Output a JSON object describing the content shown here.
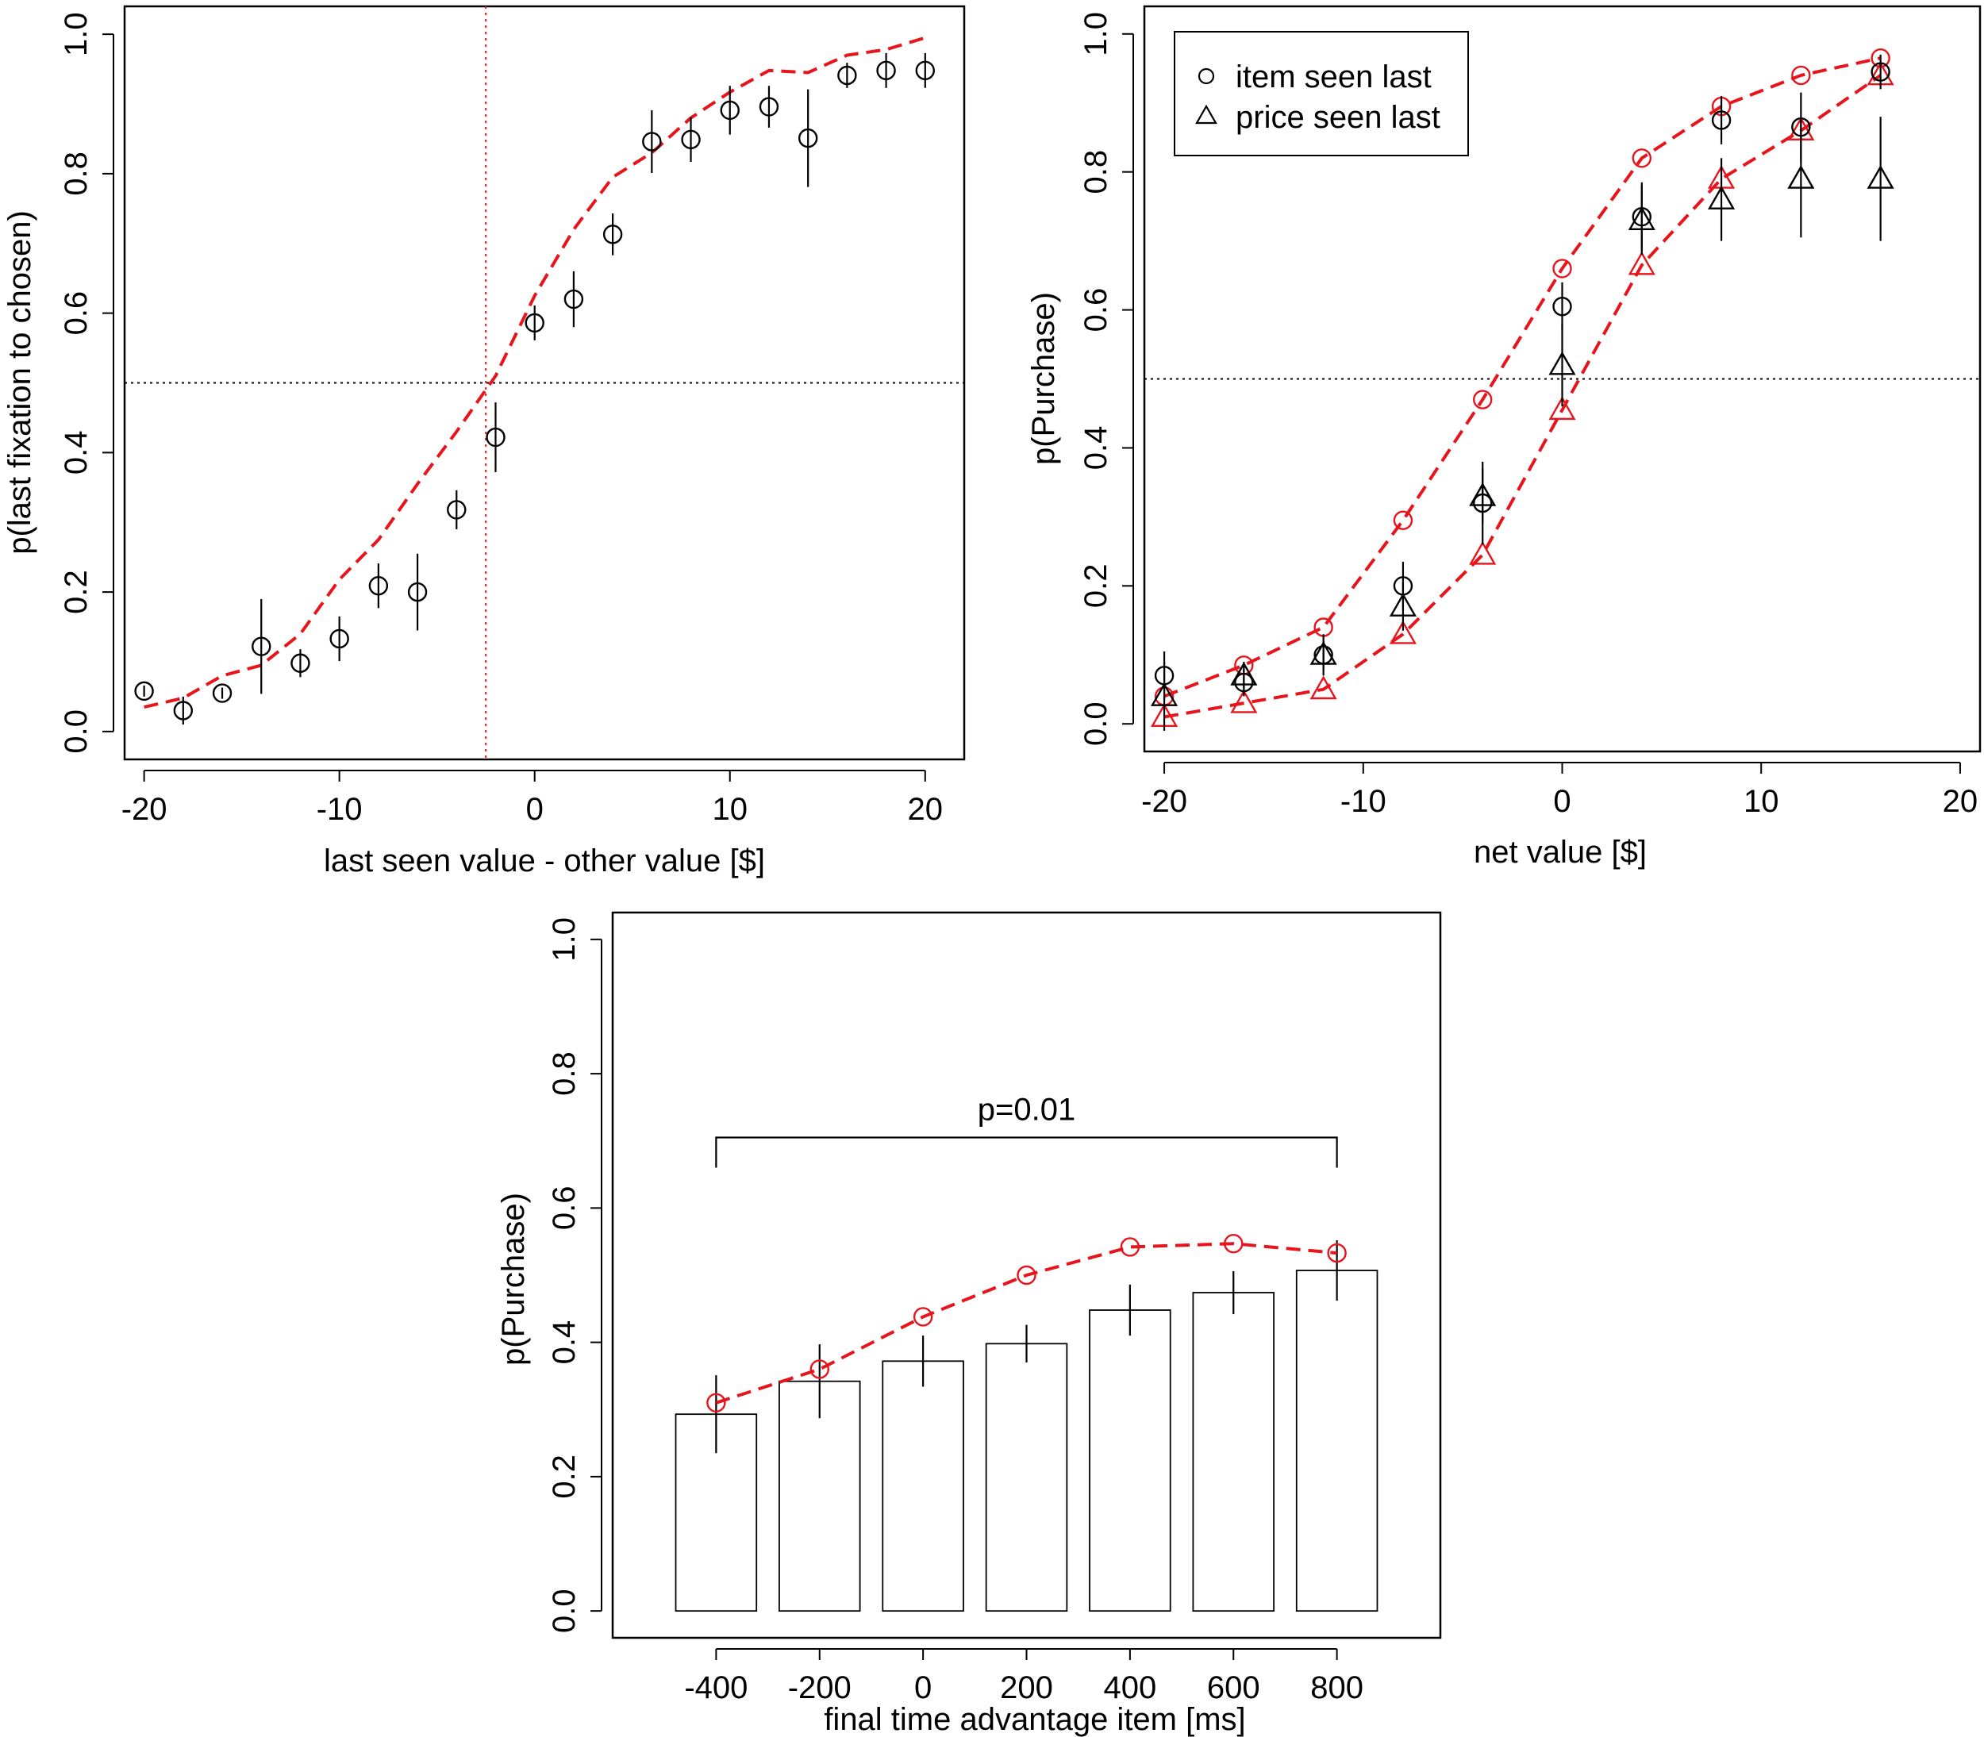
{
  "figure": {
    "colors": {
      "model": "#e8141c",
      "data": "#000000",
      "reference": "#000000",
      "vline": "#e8141c"
    }
  },
  "chart_data": [
    {
      "id": "panelA",
      "type": "scatter",
      "xlabel": "last seen value - other value [$]",
      "ylabel": "p(last fixation to chosen)",
      "xlim": [
        -21,
        22
      ],
      "ylim": [
        -0.04,
        1.04
      ],
      "xticks": [
        -20,
        -10,
        0,
        10,
        20
      ],
      "xtick_labels": [
        "-20",
        "-10",
        "0",
        "10",
        "20"
      ],
      "yticks": [
        0.0,
        0.2,
        0.4,
        0.6,
        0.8,
        1.0
      ],
      "ytick_labels": [
        "0.0",
        "0.2",
        "0.4",
        "0.6",
        "0.8",
        "1.0"
      ],
      "hline": 0.5,
      "vline": -2.5,
      "series": [
        {
          "name": "data",
          "marker": "circle",
          "x": [
            -20,
            -18,
            -16,
            -14,
            -12,
            -10,
            -8,
            -6,
            -4,
            -2,
            0,
            2,
            4,
            6,
            8,
            10,
            12,
            14,
            16,
            18,
            20
          ],
          "y": [
            0.058,
            0.03,
            0.055,
            0.122,
            0.098,
            0.133,
            0.209,
            0.2,
            0.318,
            0.422,
            0.586,
            0.62,
            0.713,
            0.846,
            0.849,
            0.891,
            0.896,
            0.851,
            0.941,
            0.948,
            0.948
          ],
          "err": [
            0.008,
            0.02,
            0.008,
            0.068,
            0.02,
            0.032,
            0.032,
            0.055,
            0.028,
            0.05,
            0.025,
            0.04,
            0.03,
            0.045,
            0.032,
            0.035,
            0.03,
            0.07,
            0.018,
            0.025,
            0.025
          ]
        },
        {
          "name": "model",
          "line": "dashed",
          "x": [
            -20,
            -18,
            -16,
            -14,
            -12,
            -10,
            -8,
            -6,
            -4,
            -2,
            0,
            2,
            4,
            6,
            8,
            10,
            12,
            14,
            16,
            18,
            20
          ],
          "y": [
            0.035,
            0.048,
            0.08,
            0.095,
            0.14,
            0.218,
            0.275,
            0.355,
            0.43,
            0.51,
            0.625,
            0.72,
            0.795,
            0.83,
            0.88,
            0.917,
            0.948,
            0.945,
            0.97,
            0.978,
            0.995
          ]
        }
      ]
    },
    {
      "id": "panelB",
      "type": "scatter",
      "xlabel": "net value [$]",
      "ylabel": "p(Purchase)",
      "xlim": [
        -21,
        21
      ],
      "ylim": [
        -0.04,
        1.04
      ],
      "xticks": [
        -20,
        -10,
        0,
        10,
        20
      ],
      "xtick_labels": [
        "-20",
        "-10",
        "0",
        "10",
        "20"
      ],
      "yticks": [
        0.0,
        0.2,
        0.4,
        0.6,
        0.8,
        1.0
      ],
      "ytick_labels": [
        "0.0",
        "0.2",
        "0.4",
        "0.6",
        "0.8",
        "1.0"
      ],
      "hline": 0.5,
      "legend": {
        "position": "top-left",
        "entries": [
          {
            "label": "item seen last",
            "marker": "circle"
          },
          {
            "label": "price seen last",
            "marker": "triangle"
          }
        ]
      },
      "series": [
        {
          "name": "item seen last (data)",
          "marker": "circle",
          "x": [
            -20,
            -16,
            -12,
            -8,
            -4,
            0,
            4,
            8,
            12,
            16
          ],
          "y": [
            0.07,
            0.06,
            0.1,
            0.2,
            0.32,
            0.605,
            0.735,
            0.875,
            0.865,
            0.945
          ],
          "err": [
            0.035,
            0.02,
            0.03,
            0.035,
            0.06,
            0.035,
            0.05,
            0.035,
            0.05,
            0.025
          ]
        },
        {
          "name": "price seen last (data)",
          "marker": "triangle",
          "x": [
            -20,
            -16,
            -12,
            -8,
            -4,
            0,
            4,
            8,
            12,
            16
          ],
          "y": [
            0.04,
            0.07,
            0.1,
            0.17,
            0.33,
            0.52,
            0.73,
            0.76,
            0.79,
            0.79
          ],
          "err": [
            0.05,
            0.02,
            0.02,
            0.035,
            0.04,
            0.06,
            0.05,
            0.06,
            0.085,
            0.09
          ]
        },
        {
          "name": "item seen last (model)",
          "line": "dashed",
          "marker": "circle",
          "x": [
            -20,
            -16,
            -12,
            -8,
            -4,
            0,
            4,
            8,
            12,
            16
          ],
          "y": [
            0.04,
            0.085,
            0.14,
            0.295,
            0.47,
            0.66,
            0.82,
            0.895,
            0.94,
            0.965
          ]
        },
        {
          "name": "price seen last (model)",
          "line": "dashed",
          "marker": "triangle",
          "x": [
            -20,
            -16,
            -12,
            -8,
            -4,
            0,
            4,
            8,
            12,
            16
          ],
          "y": [
            0.01,
            0.03,
            0.05,
            0.13,
            0.245,
            0.455,
            0.665,
            0.79,
            0.86,
            0.94
          ]
        }
      ]
    },
    {
      "id": "panelC",
      "type": "bar",
      "xlabel": "final time advantage item [ms]",
      "ylabel": "p(Purchase)",
      "categories": [
        "-400",
        "-200",
        "0",
        "200",
        "400",
        "600",
        "800"
      ],
      "xlim": [
        -0.5,
        7.5
      ],
      "ylim": [
        -0.04,
        1.04
      ],
      "yticks": [
        0.0,
        0.2,
        0.4,
        0.6,
        0.8,
        1.0
      ],
      "ytick_labels": [
        "0.0",
        "0.2",
        "0.4",
        "0.6",
        "0.8",
        "1.0"
      ],
      "bars": {
        "values": [
          0.293,
          0.342,
          0.372,
          0.398,
          0.448,
          0.474,
          0.507
        ],
        "err": [
          0.058,
          0.055,
          0.038,
          0.028,
          0.038,
          0.032,
          0.045
        ]
      },
      "model": {
        "line": "dashed",
        "marker": "circle",
        "values": [
          0.31,
          0.36,
          0.438,
          0.5,
          0.542,
          0.547,
          0.533
        ]
      },
      "annotation": {
        "text": "p=0.01",
        "from_category": "-400",
        "to_category": "800",
        "y": 0.705
      }
    }
  ]
}
